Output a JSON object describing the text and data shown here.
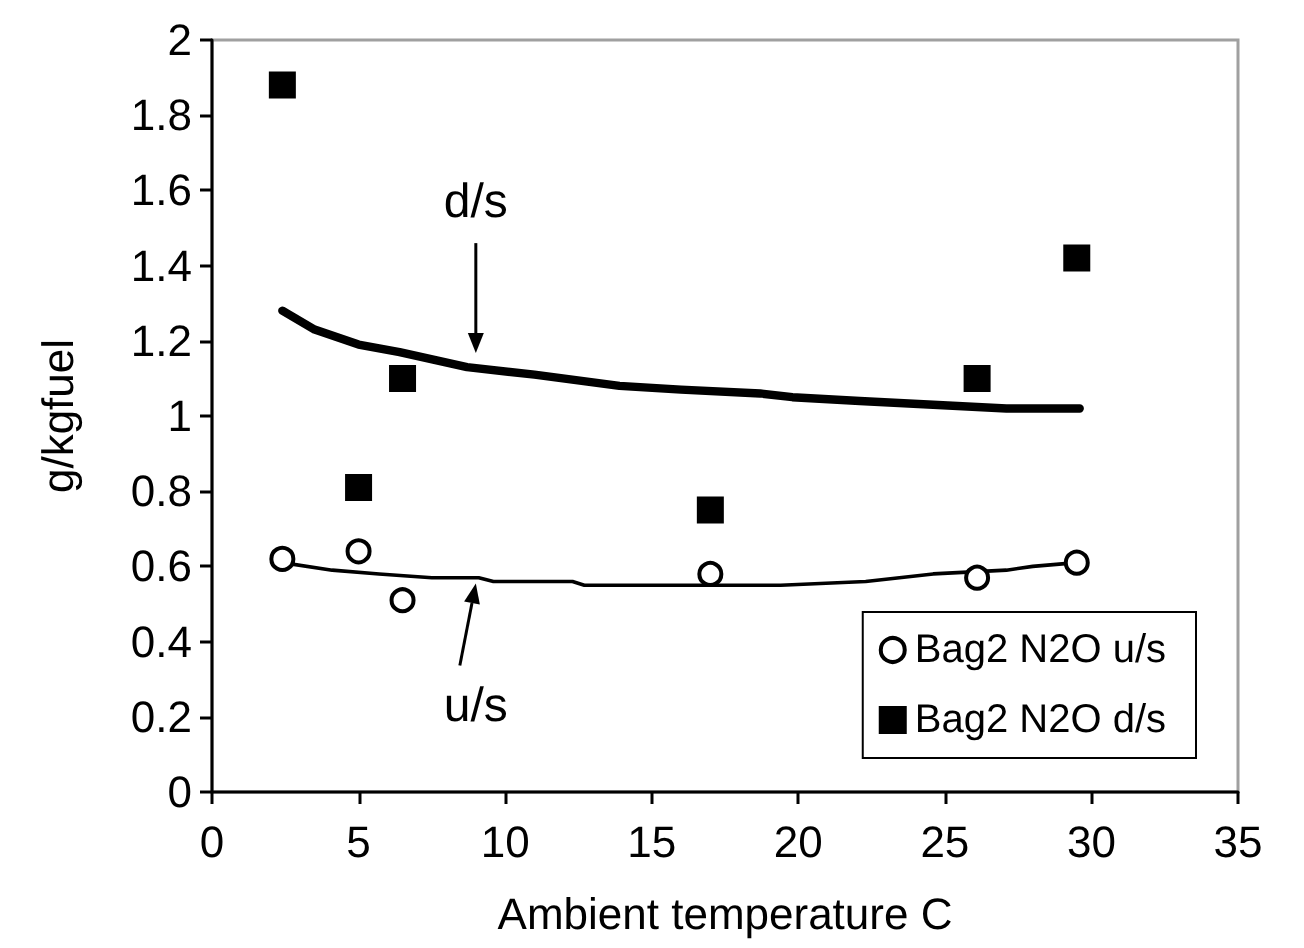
{
  "chart_data": {
    "type": "scatter",
    "xlabel": "Ambient temperature C",
    "ylabel": "g/kgfuel",
    "xlim": [
      0,
      35
    ],
    "xticks": [
      0,
      5,
      10,
      15,
      20,
      25,
      30,
      35
    ],
    "ylim": [
      0,
      2
    ],
    "yticks": [
      0,
      0.2,
      0.4,
      0.6,
      0.8,
      1,
      1.2,
      1.4,
      1.6,
      1.8,
      2
    ],
    "grid": false,
    "legend": "bottom right",
    "series": [
      {
        "name": "Bag2 N2O u/s",
        "color": "#000000",
        "marker": "circle",
        "x": [
          2.4,
          5,
          6.5,
          17,
          26.1,
          29.5
        ],
        "values": [
          0.62,
          0.64,
          0.51,
          0.58,
          0.57,
          0.61
        ]
      },
      {
        "name": "Bag2 N2O d/s",
        "color": "#000000",
        "marker": "square",
        "x": [
          2.4,
          5,
          6.5,
          17,
          26.1,
          29.5
        ],
        "values": [
          1.88,
          0.81,
          1.1,
          0.75,
          1.1,
          1.42
        ]
      },
      {
        "type": "line",
        "color": "#000000",
        "marker": "none",
        "x": [
          2.4,
          4.1,
          5.7,
          7.5,
          9.1,
          9.6,
          12.3,
          12.7,
          18.7,
          19.4,
          22.3,
          24.6,
          27.1,
          28,
          29.5
        ],
        "values": [
          0.61,
          0.59,
          0.58,
          0.57,
          0.57,
          0.56,
          0.56,
          0.55,
          0.55,
          0.55,
          0.56,
          0.58,
          0.59,
          0.6,
          0.61
        ]
      },
      {
        "type": "line",
        "color": "#000000",
        "marker": "none",
        "x": [
          2.4,
          3.5,
          5,
          6.4,
          8.7,
          11,
          13.9,
          16,
          18.7,
          19.8,
          22.1,
          24.6,
          27.1,
          29.6
        ],
        "values": [
          1.28,
          1.23,
          1.19,
          1.17,
          1.13,
          1.11,
          1.08,
          1.07,
          1.06,
          1.05,
          1.04,
          1.03,
          1.02,
          1.02
        ]
      }
    ],
    "annotations": [
      {
        "text": "d/s",
        "x": 9,
        "y": 1.13
      },
      {
        "text": "u/s",
        "x": 9,
        "y": 0.56
      }
    ]
  }
}
